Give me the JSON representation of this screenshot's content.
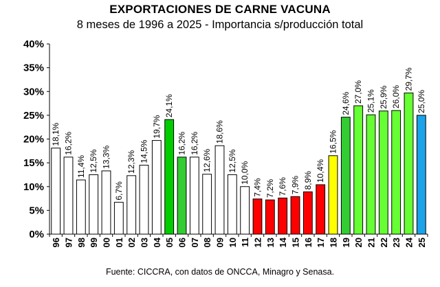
{
  "chart_data": {
    "type": "bar",
    "title": "EXPORTACIONES DE CARNE VACUNA",
    "subtitle": "8 meses de 1996 a 2025 - Importancia s/producción total",
    "source": "Fuente: CICCRA, con datos de ONCCA, Minagro y Senasa.",
    "ylim": [
      0,
      40
    ],
    "yticks": [
      "0%",
      "5%",
      "10%",
      "15%",
      "20%",
      "25%",
      "30%",
      "35%",
      "40%"
    ],
    "grid": false,
    "categories": [
      "96",
      "97",
      "98",
      "99",
      "00",
      "01",
      "02",
      "03",
      "04",
      "05",
      "06",
      "07",
      "08",
      "09",
      "10",
      "11",
      "12",
      "13",
      "14",
      "15",
      "16",
      "17",
      "18",
      "19",
      "20",
      "21",
      "22",
      "23",
      "24",
      "25"
    ],
    "values": [
      18.1,
      16.2,
      11.4,
      12.5,
      13.3,
      6.7,
      12.3,
      14.5,
      19.7,
      24.1,
      16.2,
      16.2,
      12.6,
      18.6,
      12.5,
      10.0,
      7.4,
      7.2,
      7.6,
      7.9,
      8.9,
      10.4,
      16.5,
      24.6,
      27.0,
      25.1,
      25.9,
      26.0,
      29.7,
      25.0
    ],
    "data_labels": [
      "18,1%",
      "16,2%",
      "11,4%",
      "12,5%",
      "13,3%",
      "6,7%",
      "12,3%",
      "14,5%",
      "19,7%",
      "24,1%",
      "16,2%",
      "16,2%",
      "12,6%",
      "18,6%",
      "12,5%",
      "10,0%",
      "7,4%",
      "7,2%",
      "7,6%",
      "7,9%",
      "8,9%",
      "10,4%",
      "16,5%",
      "24,6%",
      "27,0%",
      "25,1%",
      "25,9%",
      "26,0%",
      "29,7%",
      "25,0%"
    ],
    "bar_colors": [
      "#ffffff",
      "#ffffff",
      "#ffffff",
      "#ffffff",
      "#ffffff",
      "#ffffff",
      "#ffffff",
      "#ffffff",
      "#ffffff",
      "#00cc00",
      "#33cc33",
      "#ffffff",
      "#ffffff",
      "#ffffff",
      "#ffffff",
      "#ffffff",
      "#ff0000",
      "#ff0000",
      "#ff0000",
      "#ff0000",
      "#ff0000",
      "#ff0000",
      "#ffff00",
      "#33cc33",
      "#66ff33",
      "#66ff33",
      "#66ff33",
      "#66ff33",
      "#66ff33",
      "#1aa3e8"
    ]
  }
}
